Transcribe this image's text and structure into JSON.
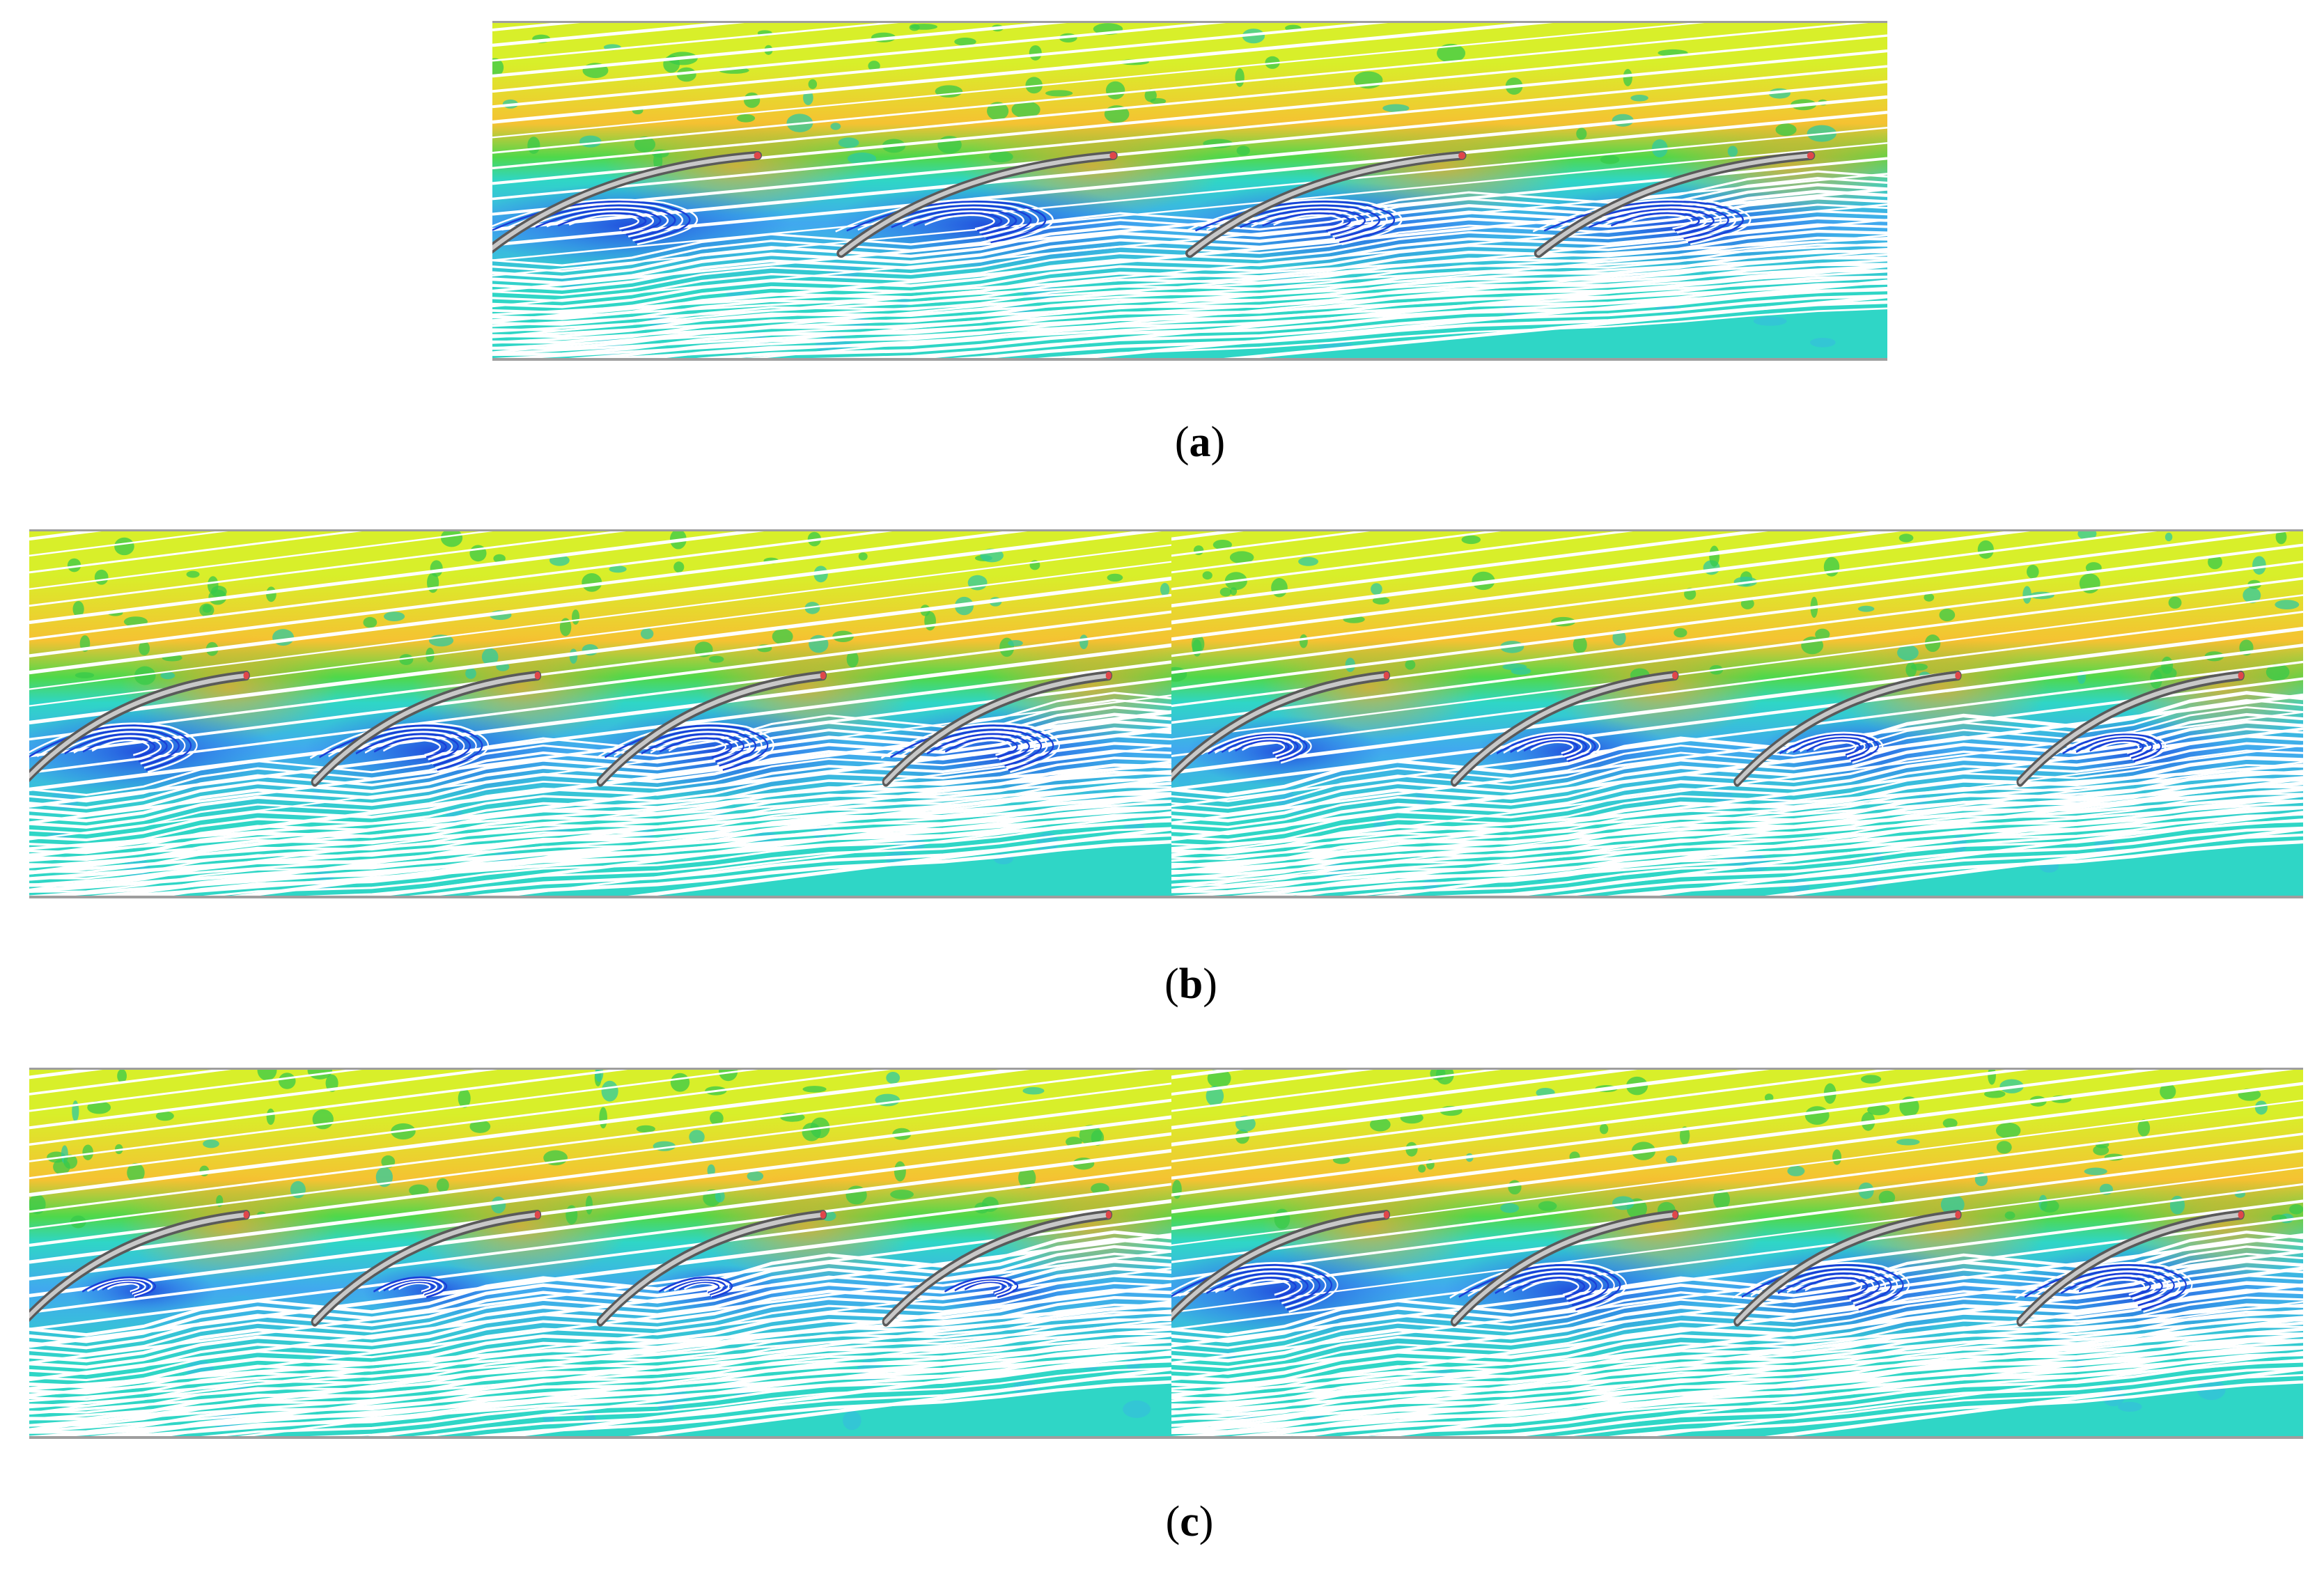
{
  "figure": {
    "captions": [
      {
        "open": "(",
        "letter": "a",
        "close": ")"
      },
      {
        "open": "(",
        "letter": "b",
        "close": ")"
      },
      {
        "open": "(",
        "letter": "c",
        "close": ")"
      }
    ],
    "panels": [
      {
        "id": "a",
        "blades": 4,
        "separation": "strong"
      },
      {
        "id": "b-left",
        "blades": 4,
        "separation": "strong"
      },
      {
        "id": "b-right",
        "blades": 4,
        "separation": "moderate"
      },
      {
        "id": "c-left",
        "blades": 4,
        "separation": "mild"
      },
      {
        "id": "c-right",
        "blades": 4,
        "separation": "strong"
      }
    ],
    "colors": {
      "high_velocity": "#f5c232",
      "mid_high": "#d8ef2a",
      "mid": "#4fd84a",
      "mid_low": "#2fd6c6",
      "low": "#41a8ef",
      "very_low": "#1a3fd8",
      "streamline": "#ffffff",
      "blade": "#8a8a8a"
    }
  }
}
